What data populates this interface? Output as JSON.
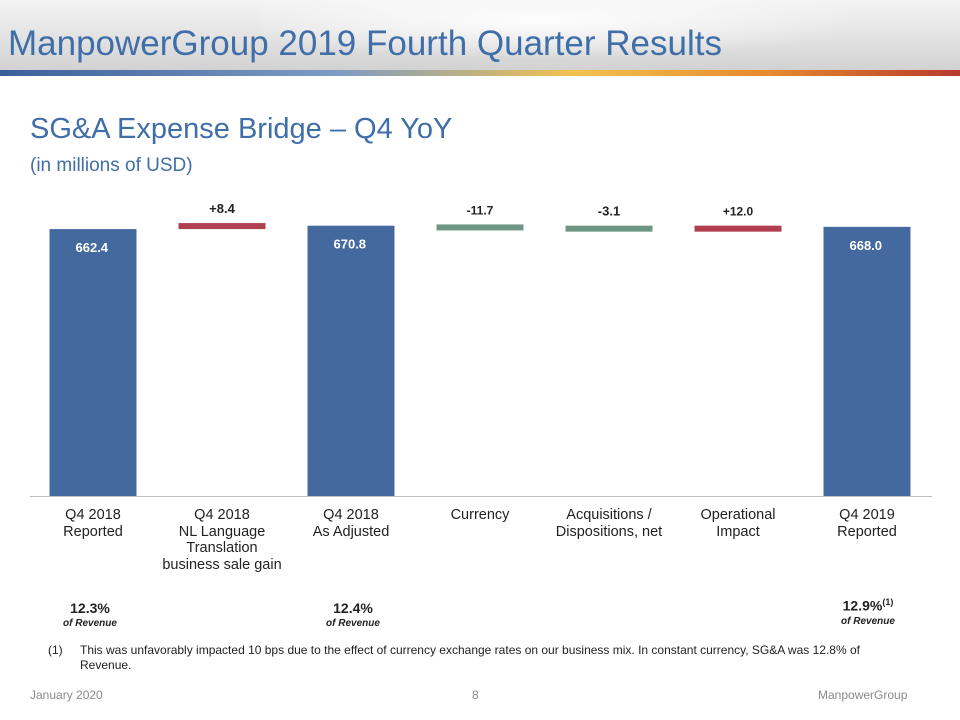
{
  "header": {
    "title": "ManpowerGroup 2019 Fourth Quarter Results"
  },
  "subtitle": "SG&A Expense Bridge – Q4 YoY",
  "units": "(in millions of USD)",
  "colors": {
    "total": "#44699f",
    "increase": "#b0404f",
    "decrease": "#6e9684",
    "title": "#3f6ea8"
  },
  "chart_data": {
    "type": "bar",
    "subtype": "waterfall",
    "categories": [
      [
        "Q4 2018",
        "Reported"
      ],
      [
        "Q4 2018",
        "NL Language",
        "Translation",
        "business sale gain"
      ],
      [
        "Q4 2018",
        "As Adjusted"
      ],
      [
        "Currency"
      ],
      [
        "Acquisitions /",
        "Dispositions, net"
      ],
      [
        "Operational",
        "Impact"
      ],
      [
        "Q4 2019",
        "Reported"
      ]
    ],
    "bars": [
      {
        "kind": "total",
        "value": 662.4,
        "label": "662.4"
      },
      {
        "kind": "increase",
        "value": 8.4,
        "label": "+8.4"
      },
      {
        "kind": "total",
        "value": 670.8,
        "label": "670.8"
      },
      {
        "kind": "decrease",
        "value": -11.7,
        "label": "-11.7"
      },
      {
        "kind": "decrease",
        "value": -3.1,
        "label": "-3.1"
      },
      {
        "kind": "increase",
        "value": 12.0,
        "label": "+12.0"
      },
      {
        "kind": "total",
        "value": 668.0,
        "label": "668.0"
      }
    ]
  },
  "revenue_pcts": [
    {
      "value": "12.3%",
      "note": "",
      "of": "of Revenue"
    },
    {
      "value": "12.4%",
      "note": "",
      "of": "of Revenue"
    },
    {
      "value": "12.9%",
      "note": "(1)",
      "of": "of Revenue"
    }
  ],
  "footnote": {
    "number": "(1)",
    "text": "This was unfavorably  impacted 10 bps due to the effect of currency exchange rates on our business mix. In constant currency, SG&A was 12.8% of Revenue."
  },
  "footer": {
    "date": "January 2020",
    "page": "8",
    "brand": "ManpowerGroup"
  }
}
